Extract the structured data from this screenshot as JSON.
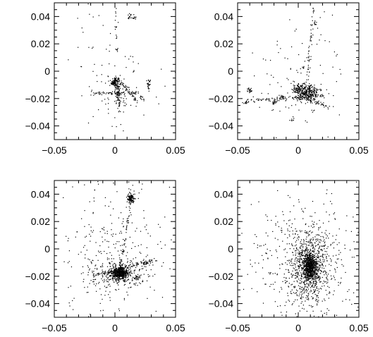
{
  "chart_data": [
    {
      "type": "scatter",
      "title": "",
      "xlabel": "",
      "ylabel": "",
      "xlim": [
        -0.05,
        0.05
      ],
      "ylim": [
        -0.05,
        0.05
      ],
      "x_ticks": [
        -0.05,
        0,
        0.05
      ],
      "x_tick_labels": [
        "−0.05",
        "0",
        "0.05"
      ],
      "y_ticks": [
        -0.04,
        -0.02,
        0,
        0.02,
        0.04
      ],
      "y_tick_labels": [
        "−0.04",
        "−0.02",
        "0",
        "0.02",
        "0.04"
      ],
      "grid": false,
      "point_color": "#000000",
      "clumps": [
        {
          "x": 0.0,
          "y": -0.008,
          "sx": 0.0015,
          "sy": 0.002,
          "n": 120
        },
        {
          "x": 0.002,
          "y": -0.018,
          "sx": 0.0008,
          "sy": 0.003,
          "n": 40
        },
        {
          "x": 0.008,
          "y": -0.015,
          "sx": 0.004,
          "sy": 0.004,
          "n": 35
        },
        {
          "x": 0.028,
          "y": -0.01,
          "sx": 0.001,
          "sy": 0.002,
          "n": 25
        },
        {
          "x": 0.012,
          "y": 0.04,
          "sx": 0.001,
          "sy": 0.001,
          "n": 14
        },
        {
          "x": 0.016,
          "y": 0.039,
          "sx": 0.0008,
          "sy": 0.0008,
          "n": 10
        },
        {
          "x": 0.022,
          "y": -0.02,
          "sx": 0.001,
          "sy": 0.001,
          "n": 12
        },
        {
          "x": 0.0,
          "y": 0.0,
          "sx": 0.018,
          "sy": 0.025,
          "n": 90
        }
      ],
      "filaments": [
        {
          "x1": -0.018,
          "y1": -0.016,
          "x2": 0.02,
          "y2": -0.016,
          "n": 60
        },
        {
          "x1": 0.002,
          "y1": -0.005,
          "x2": 0.018,
          "y2": -0.022,
          "n": 50
        },
        {
          "x1": 0.003,
          "y1": -0.01,
          "x2": 0.004,
          "y2": -0.03,
          "n": 35
        },
        {
          "x1": 0.0,
          "y1": 0.046,
          "x2": 0.002,
          "y2": 0.01,
          "n": 20
        }
      ]
    },
    {
      "type": "scatter",
      "title": "",
      "xlabel": "",
      "ylabel": "",
      "xlim": [
        -0.05,
        0.05
      ],
      "ylim": [
        -0.05,
        0.05
      ],
      "x_ticks": [
        -0.05,
        0,
        0.05
      ],
      "x_tick_labels": [
        "−0.05",
        "0",
        "0.05"
      ],
      "y_ticks": [
        -0.04,
        -0.02,
        0,
        0.02,
        0.04
      ],
      "y_tick_labels": [
        "−0.04",
        "−0.02",
        "0",
        "0.02",
        "0.04"
      ],
      "grid": false,
      "point_color": "#000000",
      "clumps": [
        {
          "x": 0.007,
          "y": -0.016,
          "sx": 0.005,
          "sy": 0.003,
          "n": 320
        },
        {
          "x": 0.0,
          "y": -0.013,
          "sx": 0.002,
          "sy": 0.002,
          "n": 60
        },
        {
          "x": -0.04,
          "y": -0.014,
          "sx": 0.001,
          "sy": 0.001,
          "n": 22
        },
        {
          "x": -0.043,
          "y": -0.023,
          "sx": 0.001,
          "sy": 0.0007,
          "n": 14
        },
        {
          "x": -0.02,
          "y": -0.023,
          "sx": 0.0012,
          "sy": 0.0008,
          "n": 16
        },
        {
          "x": -0.013,
          "y": -0.019,
          "sx": 0.001,
          "sy": 0.001,
          "n": 14
        },
        {
          "x": -0.005,
          "y": -0.036,
          "sx": 0.0008,
          "sy": 0.0008,
          "n": 8
        },
        {
          "x": 0.014,
          "y": 0.035,
          "sx": 0.0008,
          "sy": 0.001,
          "n": 8
        },
        {
          "x": 0.004,
          "y": 0.002,
          "sx": 0.001,
          "sy": 0.001,
          "n": 6
        },
        {
          "x": 0.0,
          "y": 0.0,
          "sx": 0.02,
          "sy": 0.025,
          "n": 110
        }
      ],
      "filaments": [
        {
          "x1": -0.045,
          "y1": -0.022,
          "x2": 0.02,
          "y2": -0.018,
          "n": 90
        },
        {
          "x1": 0.012,
          "y1": 0.048,
          "x2": 0.008,
          "y2": -0.005,
          "n": 45
        },
        {
          "x1": 0.005,
          "y1": -0.02,
          "x2": 0.025,
          "y2": -0.026,
          "n": 40
        }
      ]
    },
    {
      "type": "scatter",
      "title": "",
      "xlabel": "",
      "ylabel": "",
      "xlim": [
        -0.05,
        0.05
      ],
      "ylim": [
        -0.05,
        0.05
      ],
      "x_ticks": [
        -0.05,
        0,
        0.05
      ],
      "x_tick_labels": [
        "−0.05",
        "0",
        "0.05"
      ],
      "y_ticks": [
        -0.04,
        -0.02,
        0,
        0.02,
        0.04
      ],
      "y_tick_labels": [
        "−0.04",
        "−0.02",
        "0",
        "0.02",
        "0.04"
      ],
      "grid": false,
      "point_color": "#000000",
      "clumps": [
        {
          "x": 0.004,
          "y": -0.018,
          "sx": 0.0035,
          "sy": 0.0022,
          "n": 520
        },
        {
          "x": 0.004,
          "y": -0.018,
          "sx": 0.012,
          "sy": 0.006,
          "n": 260
        },
        {
          "x": 0.013,
          "y": 0.037,
          "sx": 0.0014,
          "sy": 0.0016,
          "n": 130
        },
        {
          "x": 0.025,
          "y": -0.01,
          "sx": 0.0015,
          "sy": 0.0015,
          "n": 30
        },
        {
          "x": 0.018,
          "y": -0.021,
          "sx": 0.0015,
          "sy": 0.001,
          "n": 22
        },
        {
          "x": 0.0,
          "y": 0.0,
          "sx": 0.022,
          "sy": 0.026,
          "n": 240
        }
      ],
      "filaments": [
        {
          "x1": -0.02,
          "y1": -0.02,
          "x2": 0.035,
          "y2": -0.008,
          "n": 80
        },
        {
          "x1": 0.004,
          "y1": -0.018,
          "x2": 0.013,
          "y2": 0.035,
          "n": 60
        }
      ]
    },
    {
      "type": "scatter",
      "title": "",
      "xlabel": "",
      "ylabel": "",
      "xlim": [
        -0.05,
        0.05
      ],
      "ylim": [
        -0.05,
        0.05
      ],
      "x_ticks": [
        -0.05,
        0,
        0.05
      ],
      "x_tick_labels": [
        "−0.05",
        "0",
        "0.05"
      ],
      "y_ticks": [
        -0.04,
        -0.02,
        0,
        0.02,
        0.04
      ],
      "y_tick_labels": [
        "−0.04",
        "−0.02",
        "0",
        "0.02",
        "0.04"
      ],
      "grid": false,
      "point_color": "#000000",
      "clumps": [
        {
          "x": 0.01,
          "y": -0.013,
          "sx": 0.0028,
          "sy": 0.0045,
          "n": 650
        },
        {
          "x": 0.01,
          "y": -0.013,
          "sx": 0.009,
          "sy": 0.014,
          "n": 700
        },
        {
          "x": 0.005,
          "y": -0.01,
          "sx": 0.022,
          "sy": 0.026,
          "n": 420
        }
      ],
      "filaments": []
    }
  ]
}
